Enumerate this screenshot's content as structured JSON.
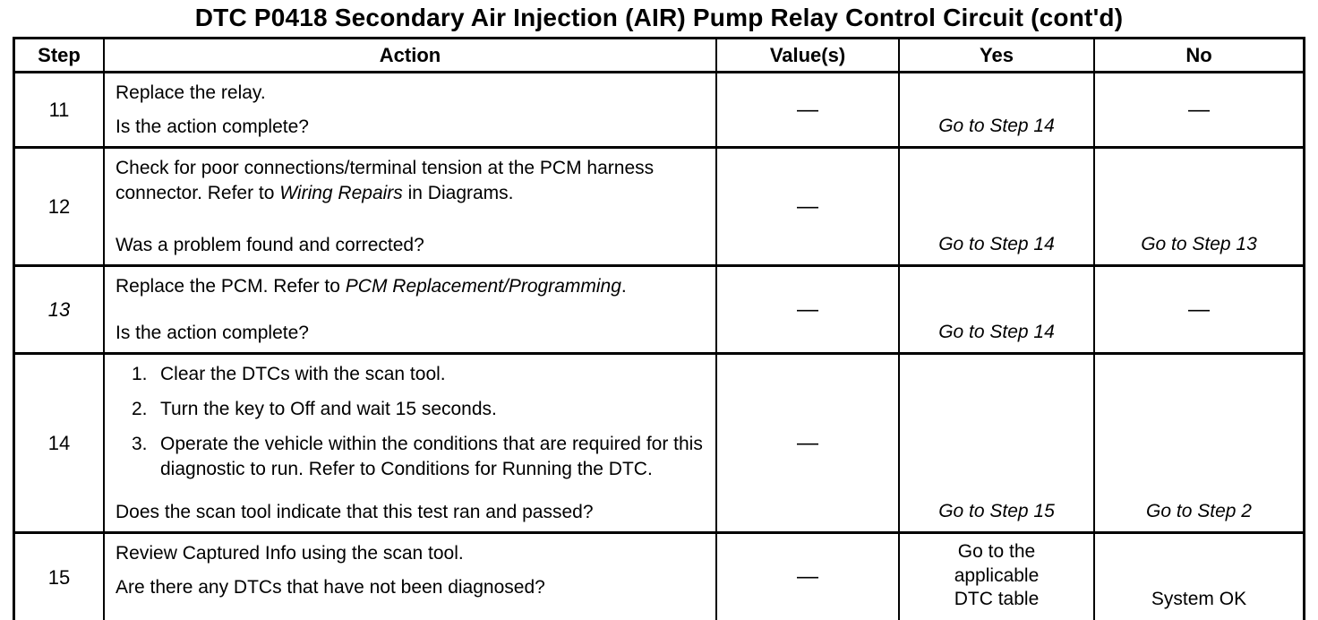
{
  "title": "DTC P0418 Secondary Air Injection (AIR) Pump Relay Control Circuit (cont'd)",
  "headers": {
    "step": "Step",
    "action": "Action",
    "values": "Value(s)",
    "yes": "Yes",
    "no": "No"
  },
  "rows": {
    "r11": {
      "step": "11",
      "action": "Replace the relay.",
      "question": "Is the action complete?",
      "value": "—",
      "yes": "Go to Step 14",
      "no": "—"
    },
    "r12": {
      "step": "12",
      "action_pre": "Check for poor connections/terminal tension at the PCM harness connector. Refer to ",
      "action_italic": "Wiring Repairs",
      "action_post": " in Diagrams.",
      "question": "Was a problem found and corrected?",
      "value": "—",
      "yes": "Go to Step 14",
      "no": "Go to Step 13"
    },
    "r13": {
      "step": "13",
      "action_pre": "Replace the PCM. Refer to ",
      "action_italic": "PCM Replacement/Programming",
      "action_post": ".",
      "question": "Is the action complete?",
      "value": "—",
      "yes": "Go to Step 14",
      "no": "—"
    },
    "r14": {
      "step": "14",
      "items": [
        {
          "num": "1.",
          "text": "Clear the DTCs with the scan tool."
        },
        {
          "num": "2.",
          "text": "Turn the key to Off and wait 15 seconds."
        },
        {
          "num": "3.",
          "text": "Operate the vehicle within the conditions that are required for this diagnostic to run. Refer to Conditions for Running the DTC."
        }
      ],
      "question": "Does the scan tool indicate that this test ran and passed?",
      "value": "—",
      "yes": "Go to Step 15",
      "no": "Go to Step 2"
    },
    "r15": {
      "step": "15",
      "action": "Review Captured Info using the scan tool.",
      "question": "Are there any DTCs that have not been diagnosed?",
      "value": "—",
      "yes": "Go to the\napplicable\nDTC table",
      "no": "System OK"
    }
  }
}
